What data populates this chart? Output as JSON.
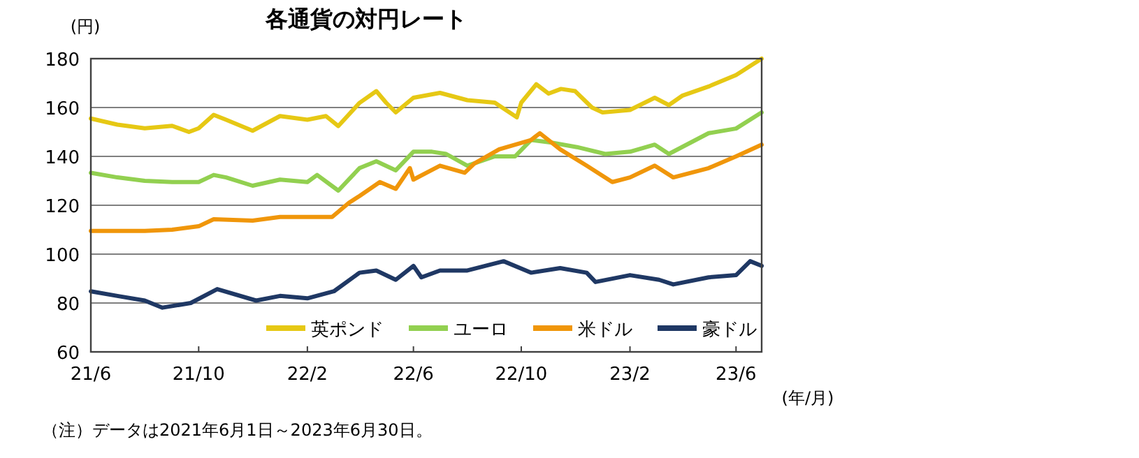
{
  "chart_data": {
    "type": "line",
    "title": "各通貨の対円レート",
    "ylabel": "(円)",
    "xlabel": "(年/月)",
    "annotations": [
      "（注）データは2021年6月1日～2023年6月30日。"
    ],
    "xlim": [
      "2021-06-01",
      "2023-06-30"
    ],
    "xticks": [
      {
        "value": "2021-06-01",
        "label": "21/6"
      },
      {
        "value": "2021-10-01",
        "label": "21/10"
      },
      {
        "value": "2022-02-01",
        "label": "22/2"
      },
      {
        "value": "2022-06-01",
        "label": "22/6"
      },
      {
        "value": "2022-10-01",
        "label": "22/10"
      },
      {
        "value": "2023-02-01",
        "label": "23/2"
      },
      {
        "value": "2023-06-01",
        "label": "23/6"
      }
    ],
    "ylim": [
      60,
      180
    ],
    "yticks": [
      60,
      80,
      100,
      120,
      140,
      160,
      180
    ],
    "grid": "y",
    "legend": "bottom",
    "marker": "none",
    "line_style": "solid",
    "series": [
      {
        "name": "英ポンド",
        "color": "#e6c814",
        "x": [
          "2021-06-01",
          "2021-07-01",
          "2021-08-01",
          "2021-09-01",
          "2021-09-20",
          "2021-10-01",
          "2021-10-18",
          "2021-11-01",
          "2021-12-01",
          "2022-01-01",
          "2022-02-01",
          "2022-02-22",
          "2022-03-08",
          "2022-04-01",
          "2022-04-20",
          "2022-05-01",
          "2022-05-12",
          "2022-06-01",
          "2022-07-01",
          "2022-08-01",
          "2022-09-01",
          "2022-09-26",
          "2022-10-01",
          "2022-10-18",
          "2022-11-01",
          "2022-11-15",
          "2022-12-01",
          "2022-12-20",
          "2023-01-01",
          "2023-02-01",
          "2023-03-01",
          "2023-03-17",
          "2023-04-01",
          "2023-05-01",
          "2023-06-01",
          "2023-06-30"
        ],
        "values": [
          155.5,
          153,
          151.5,
          152.5,
          150,
          151.5,
          157,
          155,
          150.5,
          156.5,
          155,
          156.5,
          152.4,
          161.9,
          166.7,
          162,
          158,
          164,
          166,
          163,
          162,
          156,
          162,
          169.5,
          165.7,
          167.6,
          166.7,
          160,
          158,
          159,
          164,
          161,
          164.8,
          168.6,
          173.3,
          180
        ]
      },
      {
        "name": "ユーロ",
        "color": "#92d050",
        "x": [
          "2021-06-01",
          "2021-07-01",
          "2021-08-01",
          "2021-09-01",
          "2021-10-01",
          "2021-10-18",
          "2021-11-01",
          "2021-12-01",
          "2022-01-01",
          "2022-02-01",
          "2022-02-12",
          "2022-03-08",
          "2022-04-01",
          "2022-04-20",
          "2022-05-12",
          "2022-06-01",
          "2022-06-22",
          "2022-07-08",
          "2022-08-01",
          "2022-09-01",
          "2022-09-24",
          "2022-10-12",
          "2022-11-03",
          "2022-12-03",
          "2023-01-04",
          "2023-02-01",
          "2023-03-01",
          "2023-03-17",
          "2023-05-01",
          "2023-06-01",
          "2023-06-30"
        ],
        "values": [
          133.3,
          131.4,
          130,
          129.5,
          129.5,
          132.4,
          131.4,
          128,
          130.5,
          129.5,
          132.4,
          126,
          135.2,
          138,
          134.3,
          141.9,
          141.9,
          141,
          136.2,
          140,
          140,
          146.7,
          145.7,
          143.8,
          141,
          141.9,
          144.8,
          141,
          149.5,
          151.4,
          158
        ]
      },
      {
        "name": "米ドル",
        "color": "#f0960a",
        "x": [
          "2021-06-01",
          "2021-08-01",
          "2021-09-01",
          "2021-10-01",
          "2021-10-18",
          "2021-12-01",
          "2022-01-01",
          "2022-02-01",
          "2022-03-01",
          "2022-03-20",
          "2022-04-01",
          "2022-04-24",
          "2022-05-12",
          "2022-05-28",
          "2022-06-01",
          "2022-07-01",
          "2022-07-29",
          "2022-08-09",
          "2022-09-06",
          "2022-10-12",
          "2022-10-22",
          "2022-11-14",
          "2022-12-14",
          "2023-01-12",
          "2023-02-01",
          "2023-03-01",
          "2023-03-22",
          "2023-05-01",
          "2023-06-01",
          "2023-06-30"
        ],
        "values": [
          109.5,
          109.5,
          110,
          111.4,
          114.3,
          113.7,
          115.2,
          115.2,
          115.2,
          121,
          123.8,
          129.5,
          126.7,
          135.2,
          130.5,
          136.2,
          133.3,
          137.1,
          142.9,
          146.7,
          149.5,
          142.9,
          136.2,
          129.5,
          131.4,
          136.2,
          131.4,
          135.2,
          140,
          144.8
        ]
      },
      {
        "name": "豪ドル",
        "color": "#1f3864",
        "x": [
          "2021-06-01",
          "2021-07-01",
          "2021-08-01",
          "2021-08-21",
          "2021-09-22",
          "2021-10-22",
          "2021-12-05",
          "2022-01-01",
          "2022-02-01",
          "2022-03-03",
          "2022-04-01",
          "2022-04-20",
          "2022-05-12",
          "2022-06-01",
          "2022-06-10",
          "2022-07-01",
          "2022-08-01",
          "2022-09-11",
          "2022-10-12",
          "2022-11-14",
          "2022-12-14",
          "2022-12-24",
          "2023-02-01",
          "2023-03-06",
          "2023-03-22",
          "2023-05-01",
          "2023-06-01",
          "2023-06-17",
          "2023-06-30"
        ],
        "values": [
          84.8,
          82.9,
          81,
          78.1,
          80,
          85.7,
          81,
          82.9,
          81.9,
          84.8,
          92.4,
          93.3,
          89.5,
          95.2,
          90.5,
          93.3,
          93.3,
          97.1,
          92.4,
          94.3,
          92.4,
          88.6,
          91.4,
          89.5,
          87.6,
          90.5,
          91.4,
          97.1,
          95.2
        ]
      }
    ]
  }
}
